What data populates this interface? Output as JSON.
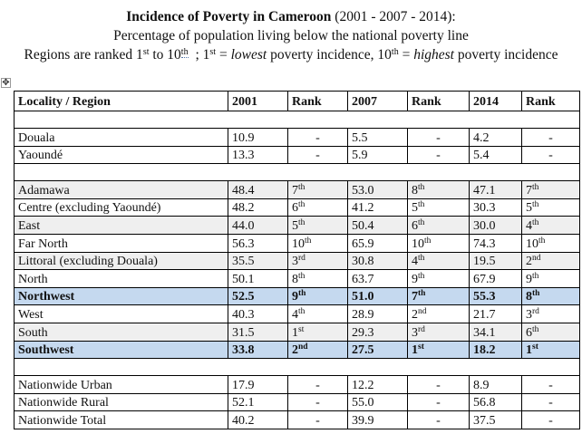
{
  "header": {
    "title_bold": "Incidence of Poverty in Cameroon",
    "title_years": "(2001 - 2007 - 2014):",
    "subtitle": "Percentage of population living below the national poverty line",
    "note": {
      "p1": "Regions are ranked 1",
      "p1_sup": "st",
      "p2": " to 10",
      "p2_sup": "th",
      "p3": " ; 1",
      "p3_sup": "st",
      "p4": " = ",
      "p4_em": "lowest",
      "p5": " poverty incidence, 10",
      "p5_sup": "th",
      "p6": " = ",
      "p6_em": "highest",
      "p7": " poverty incidence"
    }
  },
  "table": {
    "columns": [
      "Locality / Region",
      "2001",
      "Rank",
      "2007",
      "Rank",
      "2014",
      "Rank"
    ],
    "cities": [
      {
        "name": "Douala",
        "v2001": "10.9",
        "r2001": "-",
        "v2007": "5.5",
        "r2007": "-",
        "v2014": "4.2",
        "r2014": "-"
      },
      {
        "name": "Yaoundé",
        "v2001": "13.3",
        "r2001": "-",
        "v2007": "5.9",
        "r2007": "-",
        "v2014": "5.4",
        "r2014": "-"
      }
    ],
    "regions": [
      {
        "name": "Adamawa",
        "v2001": "48.4",
        "r2001n": "7",
        "r2001s": "th",
        "v2007": "53.0",
        "r2007n": "8",
        "r2007s": "th",
        "v2014": "47.1",
        "r2014n": "7",
        "r2014s": "th"
      },
      {
        "name": "Centre (excluding Yaoundé)",
        "v2001": "48.2",
        "r2001n": "6",
        "r2001s": "th",
        "v2007": "41.2",
        "r2007n": "5",
        "r2007s": "th",
        "v2014": "30.3",
        "r2014n": "5",
        "r2014s": "th"
      },
      {
        "name": "East",
        "v2001": "44.0",
        "r2001n": "5",
        "r2001s": "th",
        "v2007": "50.4",
        "r2007n": "6",
        "r2007s": "th",
        "v2014": "30.0",
        "r2014n": "4",
        "r2014s": "th"
      },
      {
        "name": "Far North",
        "v2001": "56.3",
        "r2001n": "10",
        "r2001s": "th",
        "v2007": "65.9",
        "r2007n": "10",
        "r2007s": "th",
        "v2014": "74.3",
        "r2014n": "10",
        "r2014s": "th"
      },
      {
        "name": "Littoral (excluding Douala)",
        "v2001": "35.5",
        "r2001n": "3",
        "r2001s": "rd",
        "v2007": "30.8",
        "r2007n": "4",
        "r2007s": "th",
        "v2014": "19.5",
        "r2014n": "2",
        "r2014s": "nd"
      },
      {
        "name": "North",
        "v2001": "50.1",
        "r2001n": "8",
        "r2001s": "th",
        "v2007": "63.7",
        "r2007n": "9",
        "r2007s": "th",
        "v2014": "67.9",
        "r2014n": "9",
        "r2014s": "th"
      },
      {
        "name": "Northwest",
        "v2001": "52.5",
        "r2001n": "9",
        "r2001s": "th",
        "v2007": "51.0",
        "r2007n": "7",
        "r2007s": "th",
        "v2014": "55.3",
        "r2014n": "8",
        "r2014s": "th"
      },
      {
        "name": "West",
        "v2001": "40.3",
        "r2001n": "4",
        "r2001s": "th",
        "v2007": "28.9",
        "r2007n": "2",
        "r2007s": "nd",
        "v2014": "21.7",
        "r2014n": "3",
        "r2014s": "rd"
      },
      {
        "name": "South",
        "v2001": "31.5",
        "r2001n": "1",
        "r2001s": "st",
        "v2007": "29.3",
        "r2007n": "3",
        "r2007s": "rd",
        "v2014": "34.1",
        "r2014n": "6",
        "r2014s": "th"
      },
      {
        "name": "Southwest",
        "v2001": "33.8",
        "r2001n": "2",
        "r2001s": "nd",
        "v2007": "27.5",
        "r2007n": "1",
        "r2007s": "st",
        "v2014": "18.2",
        "r2014n": "1",
        "r2014s": "st"
      }
    ],
    "nationwide": [
      {
        "name": "Nationwide Urban",
        "v2001": "17.9",
        "r2001": "-",
        "v2007": "12.2",
        "r2007": "-",
        "v2014": "8.9",
        "r2014": "-"
      },
      {
        "name": "Nationwide Rural",
        "v2001": "52.1",
        "r2001": "-",
        "v2007": "55.0",
        "r2007": "-",
        "v2014": "56.8",
        "r2014": "-"
      },
      {
        "name": "Nationwide Total",
        "v2001": "40.2",
        "r2001": "-",
        "v2007": "39.9",
        "r2007": "-",
        "v2014": "37.5",
        "r2014": "-"
      }
    ]
  },
  "colors": {
    "shade": "#efefef",
    "highlight": "#c5d9ef"
  },
  "icons": {
    "table_handle": "move-arrows-icon"
  }
}
